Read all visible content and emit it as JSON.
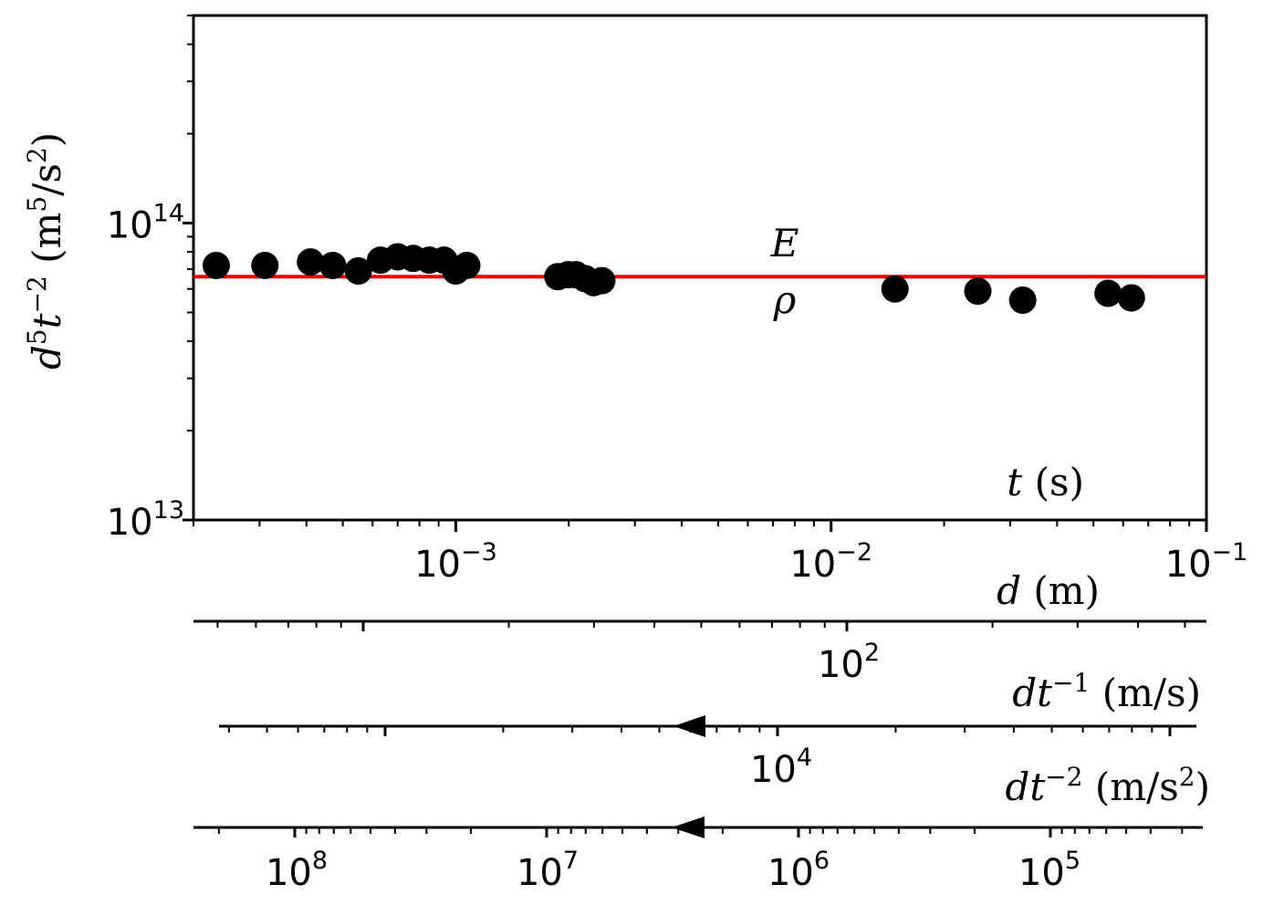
{
  "chart_data": {
    "type": "scatter",
    "title": "",
    "xlabel": "t (s)",
    "ylabel": "d⁵t⁻² (m⁵/s²)",
    "x_scale": "log",
    "y_scale": "log",
    "xlim": [
      0.0002,
      0.1
    ],
    "ylim": [
      10000000000000.0,
      500000000000000.0
    ],
    "grid": false,
    "legend": "none",
    "x_ticks": [
      {
        "value": 0.001,
        "base": "10",
        "exp": "−3"
      },
      {
        "value": 0.01,
        "base": "10",
        "exp": "−2"
      },
      {
        "value": 0.1,
        "base": "10",
        "exp": "−1"
      }
    ],
    "y_ticks": [
      {
        "value": 10000000000000.0,
        "base": "10",
        "exp": "13"
      },
      {
        "value": 100000000000000.0,
        "base": "10",
        "exp": "14"
      }
    ],
    "points": [
      {
        "x": 0.00023,
        "y": 72000000000000.0
      },
      {
        "x": 0.00031,
        "y": 72000000000000.0
      },
      {
        "x": 0.00041,
        "y": 74000000000000.0
      },
      {
        "x": 0.00047,
        "y": 72000000000000.0
      },
      {
        "x": 0.00055,
        "y": 69000000000000.0
      },
      {
        "x": 0.00063,
        "y": 75000000000000.0
      },
      {
        "x": 0.0007,
        "y": 77000000000000.0
      },
      {
        "x": 0.00077,
        "y": 76000000000000.0
      },
      {
        "x": 0.00085,
        "y": 75000000000000.0
      },
      {
        "x": 0.00093,
        "y": 75000000000000.0
      },
      {
        "x": 0.001,
        "y": 69000000000000.0
      },
      {
        "x": 0.00107,
        "y": 72000000000000.0
      },
      {
        "x": 0.00187,
        "y": 66000000000000.0
      },
      {
        "x": 0.00199,
        "y": 67000000000000.0
      },
      {
        "x": 0.00209,
        "y": 67000000000000.0
      },
      {
        "x": 0.00221,
        "y": 65000000000000.0
      },
      {
        "x": 0.00233,
        "y": 63000000000000.0
      },
      {
        "x": 0.00245,
        "y": 64000000000000.0
      },
      {
        "x": 0.0148,
        "y": 60000000000000.0
      },
      {
        "x": 0.0246,
        "y": 59000000000000.0
      },
      {
        "x": 0.0324,
        "y": 55000000000000.0
      },
      {
        "x": 0.0547,
        "y": 58000000000000.0
      },
      {
        "x": 0.0631,
        "y": 56000000000000.0
      }
    ],
    "reference_line": {
      "y": 66000000000000.0,
      "color": "#ee0000"
    },
    "annotations": {
      "upper": "E",
      "lower": "ρ",
      "x_at": 0.007
    },
    "secondary_axes": [
      {
        "label": "d (m)",
        "ticks": [
          {
            "value": 100,
            "base": "10",
            "exp": "2"
          }
        ]
      },
      {
        "label": "dt⁻¹ (m/s)",
        "ticks": [
          {
            "value": 10000,
            "base": "10",
            "exp": "4"
          }
        ]
      },
      {
        "label": "dt⁻² (m/s²)",
        "ticks": [
          {
            "value": 100000000.0,
            "base": "10",
            "exp": "8"
          },
          {
            "value": 10000000.0,
            "base": "10",
            "exp": "7"
          },
          {
            "value": 1000000.0,
            "base": "10",
            "exp": "6"
          },
          {
            "value": 100000.0,
            "base": "10",
            "exp": "5"
          }
        ]
      }
    ],
    "colors": {
      "points": "#000000",
      "line": "#ee0000",
      "axes": "#000000"
    }
  }
}
